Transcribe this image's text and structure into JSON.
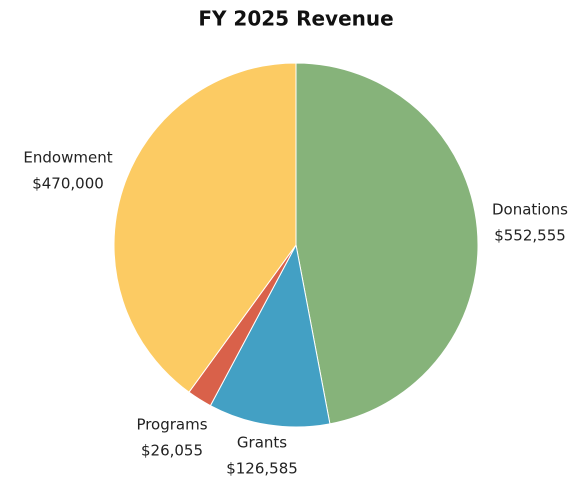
{
  "chart_data": {
    "type": "pie",
    "title": "FY 2025 Revenue",
    "categories": [
      "Donations",
      "Grants",
      "Programs",
      "Endowment"
    ],
    "values": [
      552555,
      126585,
      26055,
      470000
    ],
    "value_labels": [
      "$552,555",
      "$126,585",
      "$26,055",
      "$470,000"
    ],
    "colors": [
      "#86b37a",
      "#43a0c4",
      "#d9614a",
      "#fccb63"
    ]
  }
}
